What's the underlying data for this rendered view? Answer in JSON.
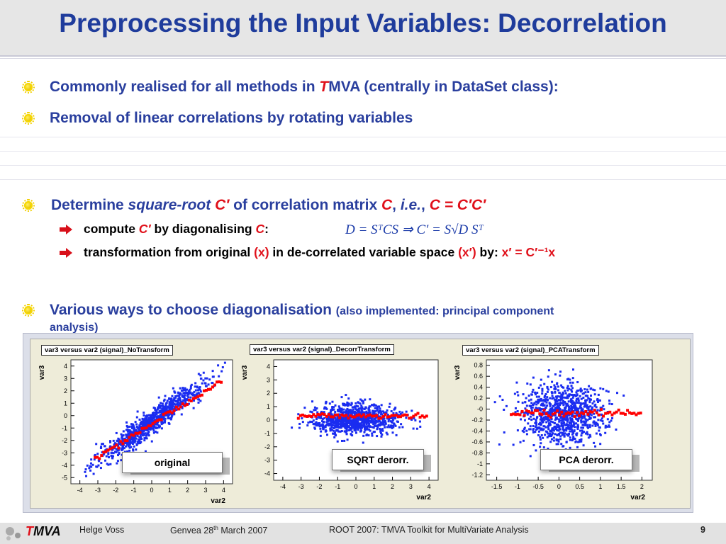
{
  "title": "Preprocessing the Input Variables: Decorrelation",
  "bullets": {
    "b1_pre": "Commonly realised for all methods in ",
    "b1_t": "T",
    "b1_post": "MVA (centrally in DataSet class):",
    "b2": "Removal of linear correlations by rotating variables",
    "b3_pre": "Determine ",
    "b3_sqrt": "square-root ",
    "b3_cprime": "C′",
    "b3_mid": " of correlation matrix ",
    "b3_c": "C",
    "b3_comma": ", ",
    "b3_ie": "i.e.",
    "b3_comma2": ", ",
    "b3_eq": "C = C′C′",
    "b4_main": "Various ways to choose diagonalisation ",
    "b4_small": "(also implemented: principal component",
    "b4_line2": "analysis)"
  },
  "subbullets": {
    "s1_pre": "compute ",
    "s1_c": "C′",
    "s1_mid": " by diagonalising ",
    "s1_c2": "C",
    "s1_colon": ":",
    "formula": "D = SᵀCS   ⇒   C′ = S√D Sᵀ",
    "s2_pre": "transformation from original ",
    "s2_x": "(x)",
    "s2_mid": " in de-correlated variable space ",
    "s2_xp": "(x′)",
    "s2_by": " by: ",
    "s2_eq": "x′ = C′⁻¹x"
  },
  "charts": [
    {
      "title": "var3 versus var2 (signal)_NoTransform",
      "label": "original",
      "ylabel": "var3",
      "xlabel": "var2",
      "xticks": [
        "-4",
        "-3",
        "-2",
        "-1",
        "0",
        "1",
        "2",
        "3",
        "4"
      ],
      "yticks": [
        "4",
        "3",
        "2",
        "1",
        "0",
        "-1",
        "-2",
        "-3",
        "-4",
        "-5"
      ]
    },
    {
      "title": "var3 versus var2 (signal)_DecorrTransform",
      "label": "SQRT derorr.",
      "ylabel": "var3",
      "xlabel": "var2",
      "xticks": [
        "-4",
        "-3",
        "-2",
        "-1",
        "0",
        "1",
        "2",
        "3",
        "4"
      ],
      "yticks": [
        "4",
        "3",
        "2",
        "1",
        "0",
        "-1",
        "-2",
        "-3",
        "-4"
      ]
    },
    {
      "title": "var3 versus var2 (signal)_PCATransform",
      "label": "PCA derorr.",
      "ylabel": "var3",
      "xlabel": "var2",
      "xticks": [
        "-1.5",
        "-1",
        "-0.5",
        "0",
        "0.5",
        "1",
        "1.5",
        "2"
      ],
      "yticks": [
        "0.8",
        "0.6",
        "0.4",
        "0.2",
        "-0",
        "-0.2",
        "-0.4",
        "-0.6",
        "-0.8",
        "-1",
        "-1.2"
      ]
    }
  ],
  "footer": {
    "logo_t": "T",
    "logo_rest": "MVA",
    "author": "Helge Voss",
    "event_pre": "Genvea  28",
    "event_sup": "th",
    "event_post": " March 2007",
    "talk": "ROOT 2007:   TMVA Toolkit for MultiVariate Analysis",
    "page": "9"
  },
  "colors": {
    "title": "#1f3c9c",
    "accent_red": "#e0101a",
    "scatter_blue": "#1a2cf0",
    "profile_red": "#ff0000"
  }
}
